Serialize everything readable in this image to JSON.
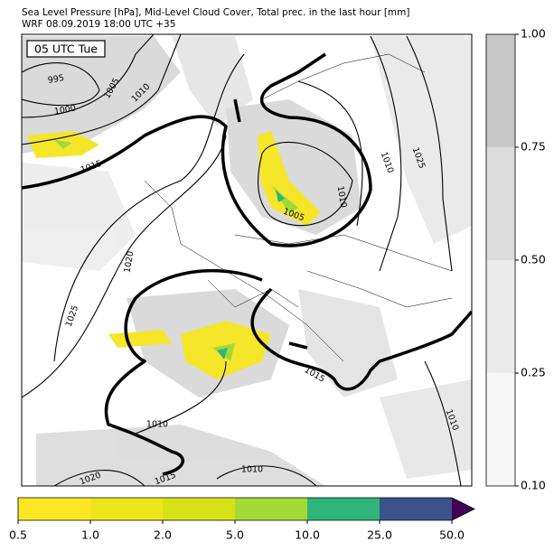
{
  "title": "Sea Level Pressure [hPa], Mid-Level Cloud Cover, Total prec. in the last hour [mm]",
  "subtitle": "WRF 08.09.2019 18:00 UTC +35",
  "map": {
    "time_label": "05 UTC Tue",
    "contour_labels": [
      "995",
      "1000",
      "1005",
      "1010",
      "1015",
      "1020",
      "1025",
      "1010",
      "1015",
      "1010",
      "1020",
      "1005",
      "1010",
      "1010",
      "1025",
      "1015",
      "1010"
    ]
  },
  "cloud_colorbar": {
    "colors": [
      "#f7f7f7",
      "#ebebeb",
      "#dcdcdc",
      "#c8c8c8"
    ],
    "ticks": [
      {
        "value": 0.1,
        "label": "0.10"
      },
      0.25,
      {
        "value": 0.5,
        "label": "0.50"
      },
      0.75,
      {
        "value": 1,
        "label": "1.00"
      }
    ]
  },
  "precip_colorbar": {
    "colors": [
      "#fde725",
      "#eee51d",
      "#d8e219",
      "#a2da37",
      "#2fb47c",
      "#3b528b"
    ],
    "extend_color": "#440154",
    "ticks": [
      0.5,
      {
        "value": 1,
        "label": "1.0"
      },
      {
        "value": 2,
        "label": "2.0"
      },
      {
        "value": 5,
        "label": "5.0"
      },
      {
        "value": 10,
        "label": "10.0"
      },
      {
        "value": 25,
        "label": "25.0"
      },
      {
        "value": 50,
        "label": "50.0"
      }
    ]
  }
}
